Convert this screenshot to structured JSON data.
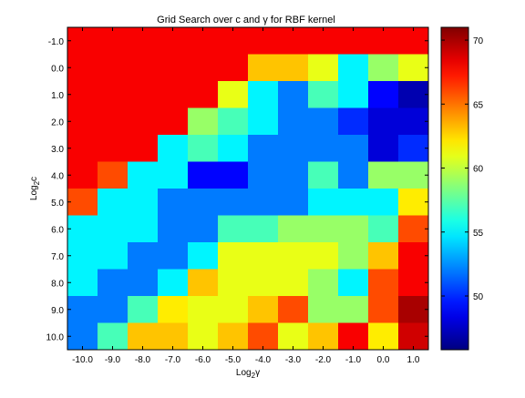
{
  "chart_data": {
    "type": "heatmap",
    "title": "Grid Search over c and γ for RBF kernel",
    "xlabel": {
      "base": "Log",
      "sub": "2",
      "symbol": "γ"
    },
    "ylabel": {
      "base": "Log",
      "sub": "2",
      "symbol": "c"
    },
    "x_ticks": [
      "-10.0",
      "-9.0",
      "-8.0",
      "-7.0",
      "-6.0",
      "-5.0",
      "-4.0",
      "-3.0",
      "-2.0",
      "-1.0",
      "0.0",
      "1.0"
    ],
    "y_ticks": [
      "-1.0",
      "0.0",
      "1.0",
      "2.0",
      "3.0",
      "4.0",
      "5.0",
      "6.0",
      "7.0",
      "8.0",
      "9.0",
      "10.0"
    ],
    "colorbar": {
      "colormap": "jet",
      "vmin": 45.8,
      "vmax": 71.0,
      "ticks": [
        50,
        55,
        60,
        65,
        70
      ]
    },
    "z": [
      [
        68,
        68,
        68,
        68,
        68,
        68,
        68,
        68,
        68,
        68,
        68,
        68
      ],
      [
        68,
        68,
        68,
        68,
        68,
        68,
        63,
        63,
        61,
        55,
        59,
        61
      ],
      [
        68,
        68,
        68,
        68,
        68,
        61,
        55,
        52,
        57,
        55,
        49,
        47
      ],
      [
        68,
        68,
        68,
        68,
        59,
        57,
        55,
        52,
        52,
        50,
        48,
        48
      ],
      [
        68,
        68,
        68,
        55,
        57,
        55,
        52,
        52,
        52,
        52,
        48,
        50
      ],
      [
        68,
        66,
        55,
        55,
        49,
        49,
        52,
        52,
        57,
        52,
        59,
        59
      ],
      [
        66,
        55,
        55,
        52,
        52,
        52,
        52,
        52,
        55,
        55,
        55,
        62
      ],
      [
        55,
        55,
        55,
        52,
        52,
        57,
        57,
        59,
        59,
        59,
        57,
        66
      ],
      [
        55,
        55,
        52,
        52,
        55,
        61,
        61,
        61,
        61,
        59,
        63,
        68
      ],
      [
        55,
        52,
        52,
        55,
        63,
        61,
        61,
        61,
        59,
        55,
        66,
        68
      ],
      [
        52,
        52,
        57,
        62,
        61,
        61,
        63,
        66,
        59,
        59,
        66,
        70
      ],
      [
        52,
        57,
        63,
        63,
        61,
        63,
        66,
        61,
        63,
        68,
        62,
        69
      ]
    ]
  }
}
